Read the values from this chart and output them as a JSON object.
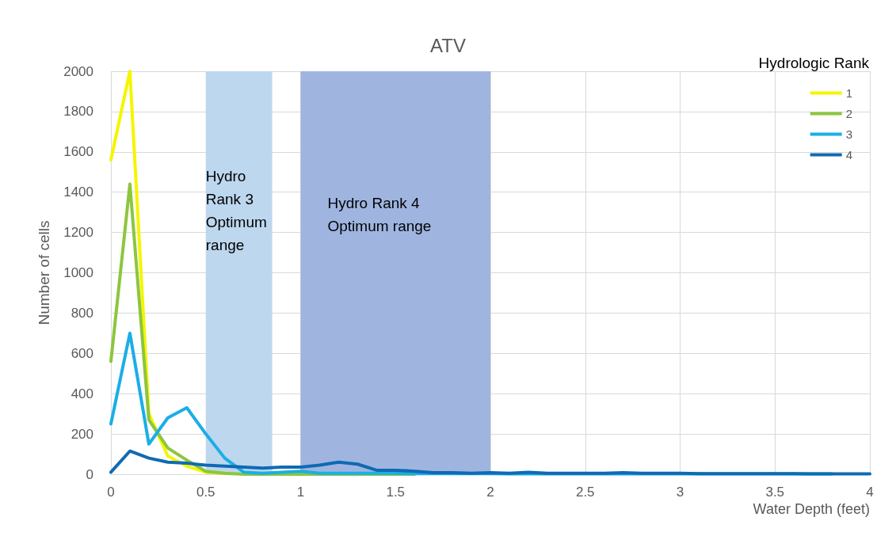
{
  "chart_data": {
    "type": "line",
    "title": "ATV",
    "xlabel": "Water Depth (feet)",
    "ylabel": "Number of cells",
    "legend_title": "Hydrologic Rank",
    "x": [
      0,
      0.1,
      0.2,
      0.3,
      0.4,
      0.5,
      0.6,
      0.7,
      0.8,
      0.9,
      1,
      1.1,
      1.2,
      1.3,
      1.4,
      1.5,
      1.6,
      1.7,
      1.8,
      1.9,
      2,
      2.1,
      2.2,
      2.3,
      2.4,
      2.5,
      2.6,
      2.7,
      2.8,
      2.9,
      3,
      3.1,
      3.2,
      3.3,
      3.4,
      3.5,
      3.6,
      3.7,
      3.8,
      3.9,
      4
    ],
    "series": [
      {
        "name": "1",
        "color": "#f5f500",
        "values": [
          1560,
          2000,
          300,
          90,
          40,
          10,
          5,
          null,
          null,
          null,
          null,
          null,
          null,
          null,
          null,
          null,
          null,
          null,
          null,
          null,
          null,
          null,
          null,
          null,
          null,
          null,
          null,
          null,
          null,
          null,
          null,
          null,
          null,
          null,
          null,
          null,
          null,
          null,
          null,
          null,
          null
        ]
      },
      {
        "name": "2",
        "color": "#8cc63f",
        "values": [
          560,
          1440,
          270,
          130,
          70,
          15,
          5,
          0,
          0,
          0,
          0,
          0,
          0,
          0,
          0,
          0,
          0,
          null,
          null,
          null,
          null,
          null,
          null,
          null,
          null,
          null,
          null,
          null,
          null,
          null,
          null,
          null,
          null,
          null,
          null,
          null,
          null,
          null,
          null,
          null,
          null
        ]
      },
      {
        "name": "3",
        "color": "#1aaee6",
        "values": [
          250,
          700,
          150,
          280,
          330,
          200,
          80,
          10,
          5,
          10,
          15,
          5,
          5,
          5,
          5,
          5,
          3,
          3,
          3,
          3,
          3,
          2,
          2,
          2,
          2,
          2,
          2,
          2,
          2,
          2,
          2,
          2,
          2,
          2,
          2,
          2,
          2,
          2,
          2,
          null,
          null
        ]
      },
      {
        "name": "4",
        "color": "#0f6ab4",
        "values": [
          10,
          115,
          80,
          60,
          55,
          45,
          40,
          35,
          30,
          35,
          35,
          45,
          60,
          50,
          20,
          20,
          15,
          8,
          8,
          5,
          8,
          5,
          10,
          5,
          5,
          5,
          5,
          8,
          5,
          5,
          5,
          3,
          3,
          3,
          3,
          3,
          3,
          2,
          2,
          2,
          2
        ]
      }
    ],
    "xlim": [
      0,
      4
    ],
    "xticks": [
      0,
      0.5,
      1,
      1.5,
      2,
      2.5,
      3,
      3.5,
      4
    ],
    "ylim": [
      0,
      2000
    ],
    "yticks": [
      0,
      200,
      400,
      600,
      800,
      1000,
      1200,
      1400,
      1600,
      1800,
      2000
    ],
    "bands": [
      {
        "axis": "x",
        "from": 0.5,
        "to": 0.85,
        "label": "Hydro Rank 3 Optimum range",
        "color": "#bdd7ee"
      },
      {
        "axis": "x",
        "from": 1,
        "to": 2,
        "label": "Hydro Rank 4 Optimum range",
        "color": "#9fb5e0"
      }
    ],
    "grid": true,
    "legend": "top right",
    "marker": "none",
    "line_style": "solid"
  }
}
